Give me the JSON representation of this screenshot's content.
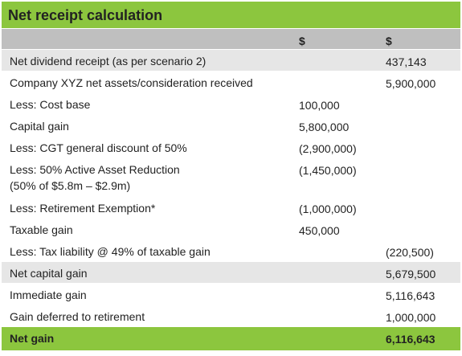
{
  "title": "Net receipt calculation",
  "header": [
    "$",
    "$"
  ],
  "rows": [
    [
      "Net dividend receipt (as per scenario 2)",
      null,
      "437,143"
    ],
    [
      "Company XYZ net assets/consideration received",
      null,
      "5,900,000"
    ],
    [
      "Less: Cost base",
      "100,000",
      null
    ],
    [
      "Capital gain",
      "5,800,000",
      null
    ],
    [
      "Less: CGT general discount of 50%",
      "(2,900,000)",
      null
    ],
    [
      "Less: 50% Active Asset Reduction\n(50% of $5.8m – $2.9m)",
      "(1,450,000)",
      null
    ],
    [
      "Less: Retirement Exemption*",
      "(1,000,000)",
      null
    ],
    [
      "Taxable gain",
      "450,000",
      null
    ],
    [
      "Less: Tax liability @ 49% of taxable gain",
      null,
      "(220,500)"
    ],
    [
      "Net capital gain",
      null,
      "5,679,500"
    ],
    [
      "Immediate gain",
      null,
      "5,116,643"
    ],
    [
      "Gain deferred to retirement",
      null,
      "1,000,000"
    ],
    [
      "Net gain",
      null,
      "6,116,643"
    ]
  ]
}
